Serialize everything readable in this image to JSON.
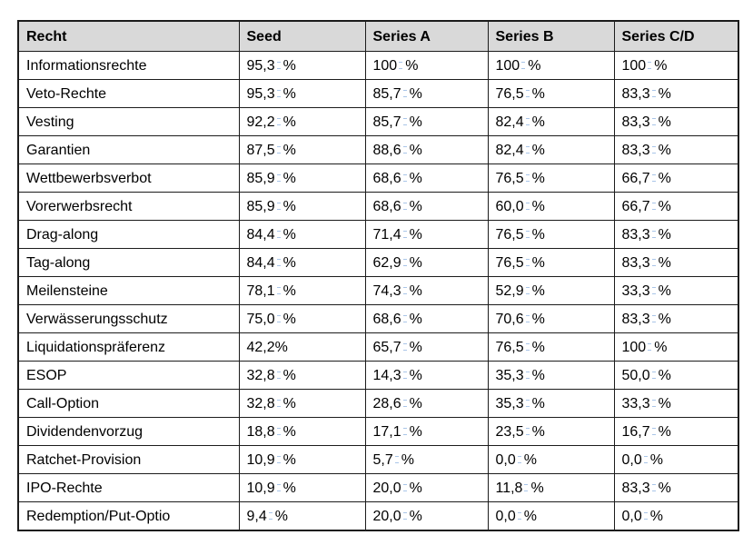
{
  "table": {
    "columns": [
      "Recht",
      "Seed",
      "Series A",
      "Series B",
      "Series C/D"
    ],
    "rows": [
      {
        "label": "Informationsrechte",
        "values": [
          "95,3 %",
          "100 %",
          "100 %",
          "100 %"
        ]
      },
      {
        "label": "Veto-Rechte",
        "values": [
          "95,3 %",
          "85,7 %",
          "76,5 %",
          "83,3 %"
        ]
      },
      {
        "label": "Vesting",
        "values": [
          "92,2 %",
          "85,7 %",
          "82,4 %",
          "83,3 %"
        ]
      },
      {
        "label": "Garantien",
        "values": [
          "87,5 %",
          "88,6 %",
          "82,4 %",
          "83,3 %"
        ]
      },
      {
        "label": "Wettbewerbsverbot",
        "values": [
          "85,9 %",
          "68,6 %",
          "76,5 %",
          "66,7 %"
        ]
      },
      {
        "label": "Vorerwerbsrecht",
        "values": [
          "85,9 %",
          "68,6 %",
          "60,0 %",
          "66,7 %"
        ]
      },
      {
        "label": "Drag-along",
        "values": [
          "84,4 %",
          "71,4 %",
          "76,5 %",
          "83,3 %"
        ]
      },
      {
        "label": "Tag-along",
        "values": [
          "84,4 %",
          "62,9 %",
          "76,5 %",
          "83,3 %"
        ]
      },
      {
        "label": "Meilensteine",
        "values": [
          "78,1 %",
          "74,3 %",
          "52,9 %",
          "33,3 %"
        ]
      },
      {
        "label": "Verwässerungsschutz",
        "values": [
          "75,0 %",
          "68,6 %",
          "70,6 %",
          "83,3 %"
        ]
      },
      {
        "label": "Liquidationspräferenz",
        "values": [
          "42,2%",
          "65,7 %",
          "76,5 %",
          "100 %"
        ]
      },
      {
        "label": "ESOP",
        "values": [
          "32,8 %",
          "14,3 %",
          "35,3 %",
          "50,0 %"
        ]
      },
      {
        "label": "Call-Option",
        "values": [
          "32,8 %",
          "28,6 %",
          "35,3 %",
          "33,3 %"
        ]
      },
      {
        "label": "Dividendenvorzug",
        "values": [
          "18,8 %",
          "17,1 %",
          "23,5 %",
          "16,7 %"
        ]
      },
      {
        "label": "Ratchet-Provision",
        "values": [
          "10,9 %",
          "5,7 %",
          "0,0 %",
          "0,0 %"
        ]
      },
      {
        "label": "IPO-Rechte",
        "values": [
          "10,9 %",
          "20,0 %",
          "11,8 %",
          "83,3 %"
        ]
      },
      {
        "label": "Redemption/Put-Optio",
        "values": [
          "9,4 %",
          "20,0 %",
          "0,0 %",
          "0,0 %"
        ]
      }
    ]
  },
  "colors": {
    "header_bg": "#d9d9d9",
    "border": "#1c1c1c",
    "text": "#000000",
    "nbsp_mark": "#a9c5e8"
  }
}
